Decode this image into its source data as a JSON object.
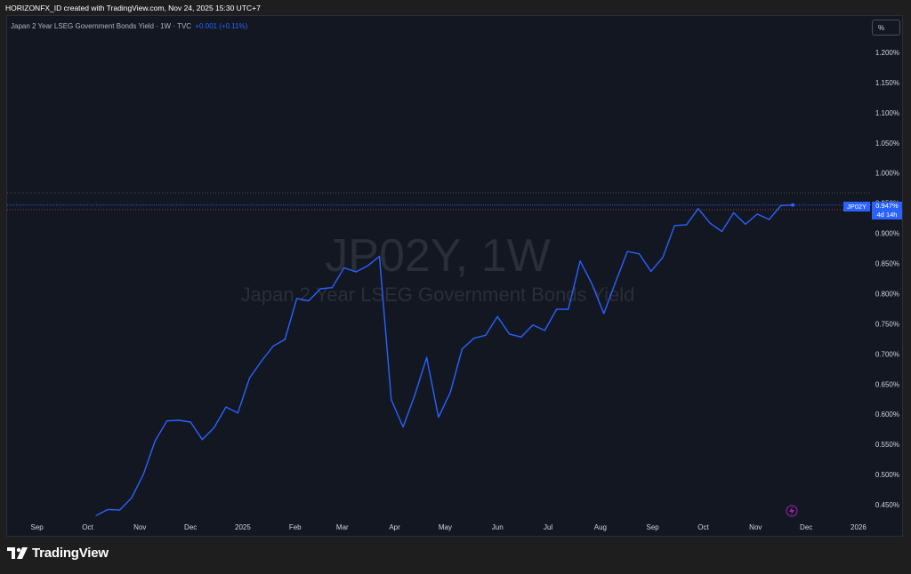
{
  "header": {
    "attribution": "HORIZONFX_ID created with TradingView.com, Nov 24, 2025 15:30 UTC+7"
  },
  "legend": {
    "title": "Japan 2 Year LSEG Government Bonds Yield · 1W · TVC",
    "change": "+0.001 (+0.11%)"
  },
  "scale_button": "%",
  "watermark": {
    "symbol": "JP02Y, 1W",
    "name": "Japan 2 Year LSEG Government Bonds Yield"
  },
  "price_label": {
    "symbol": "JP02Y",
    "value": "0.947%",
    "countdown": "4d 14h"
  },
  "footer": {
    "brand": "TradingView"
  },
  "colors": {
    "line": "#2962ff",
    "background": "#131722",
    "last_price_line": "#2962ff",
    "lightning": "#9c27b0"
  },
  "icons": [
    "tradingview-logo-icon",
    "lightning-icon"
  ],
  "chart_data": {
    "type": "line",
    "title": "Japan 2 Year LSEG Government Bonds Yield",
    "ylim": [
      0.43,
      1.24
    ],
    "y_ticks": [
      "1.200%",
      "1.150%",
      "1.100%",
      "1.050%",
      "1.000%",
      "0.950%",
      "0.900%",
      "0.850%",
      "0.800%",
      "0.750%",
      "0.700%",
      "0.650%",
      "0.600%",
      "0.550%",
      "0.500%",
      "0.450%"
    ],
    "x_ticks": [
      "Sep",
      "Oct",
      "Nov",
      "Dec",
      "2025",
      "Feb",
      "Mar",
      "Apr",
      "May",
      "Jun",
      "Jul",
      "Aug",
      "Sep",
      "Oct",
      "Nov",
      "Dec",
      "2026"
    ],
    "x": [
      "2024-10-06",
      "2024-10-13",
      "2024-10-20",
      "2024-10-27",
      "2024-11-03",
      "2024-11-10",
      "2024-11-17",
      "2024-11-24",
      "2024-12-01",
      "2024-12-08",
      "2024-12-15",
      "2024-12-22",
      "2024-12-29",
      "2025-01-05",
      "2025-01-12",
      "2025-01-19",
      "2025-01-26",
      "2025-02-02",
      "2025-02-09",
      "2025-02-16",
      "2025-02-23",
      "2025-03-02",
      "2025-03-09",
      "2025-03-16",
      "2025-03-23",
      "2025-03-30",
      "2025-04-06",
      "2025-04-13",
      "2025-04-20",
      "2025-04-27",
      "2025-05-04",
      "2025-05-11",
      "2025-05-18",
      "2025-05-25",
      "2025-06-01",
      "2025-06-08",
      "2025-06-15",
      "2025-06-22",
      "2025-06-29",
      "2025-07-06",
      "2025-07-13",
      "2025-07-20",
      "2025-07-27",
      "2025-08-03",
      "2025-08-10",
      "2025-08-17",
      "2025-08-24",
      "2025-08-31",
      "2025-09-07",
      "2025-09-14",
      "2025-09-21",
      "2025-09-28",
      "2025-10-05",
      "2025-10-12",
      "2025-10-19",
      "2025-10-26",
      "2025-11-02",
      "2025-11-09",
      "2025-11-16",
      "2025-11-23"
    ],
    "series": [
      {
        "values": [
          0.432,
          0.442,
          0.441,
          0.461,
          0.5,
          0.556,
          0.589,
          0.59,
          0.587,
          0.558,
          0.578,
          0.612,
          0.602,
          0.66,
          0.688,
          0.713,
          0.724,
          0.792,
          0.788,
          0.808,
          0.81,
          0.843,
          0.836,
          0.846,
          0.862,
          0.624,
          0.579,
          0.632,
          0.694,
          0.595,
          0.636,
          0.708,
          0.726,
          0.731,
          0.762,
          0.733,
          0.728,
          0.748,
          0.739,
          0.774,
          0.774,
          0.854,
          0.816,
          0.767,
          0.819,
          0.87,
          0.866,
          0.837,
          0.86,
          0.913,
          0.914,
          0.941,
          0.917,
          0.903,
          0.934,
          0.915,
          0.932,
          0.923,
          0.946,
          0.947
        ]
      }
    ],
    "last_value": 0.947,
    "grid": false
  }
}
